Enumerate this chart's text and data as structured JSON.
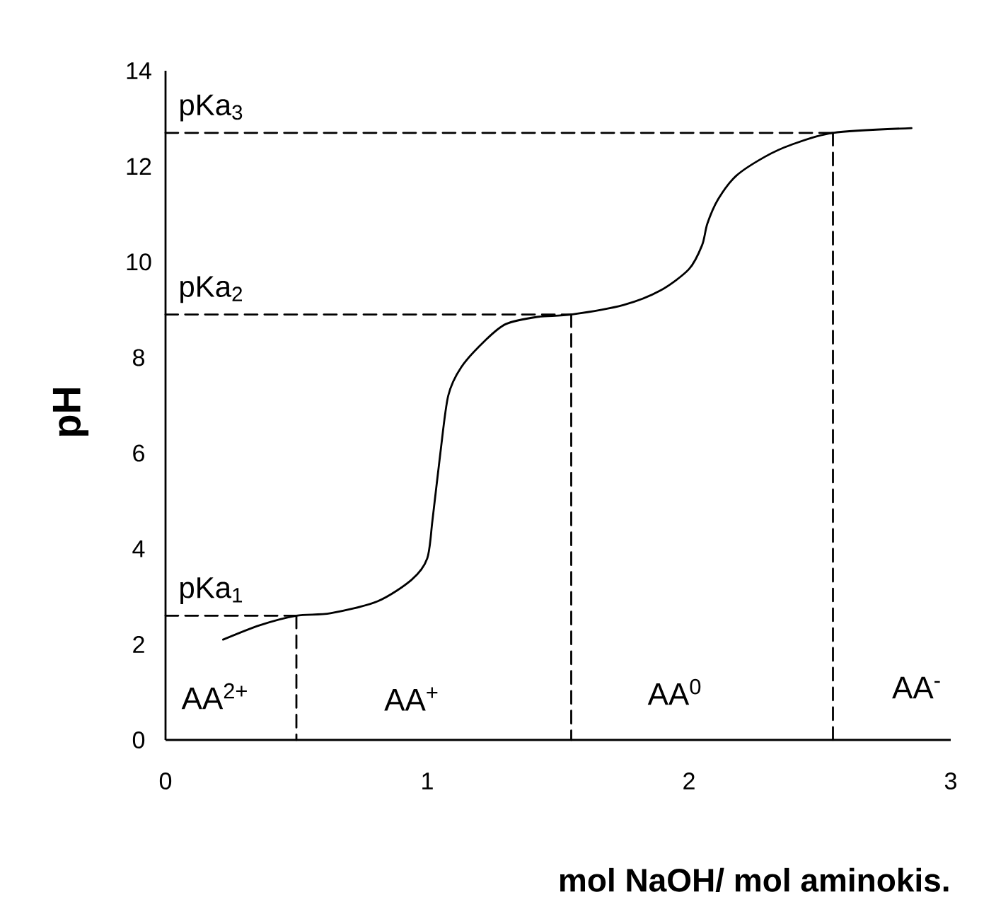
{
  "chart_data": {
    "type": "line",
    "xlabel": "mol NaOH/ mol aminokis.",
    "ylabel": "pH",
    "xlim": [
      0,
      3
    ],
    "ylim": [
      0,
      14
    ],
    "xticks": [
      0,
      1,
      2,
      3
    ],
    "yticks": [
      0,
      2,
      4,
      6,
      8,
      10,
      12,
      14
    ],
    "series": [
      {
        "color": "#000000",
        "line_style": "solid",
        "x": [
          0.22,
          0.36,
          0.5,
          0.63,
          0.81,
          0.94,
          1.0,
          1.02,
          1.05,
          1.08,
          1.13,
          1.22,
          1.3,
          1.42,
          1.55,
          1.75,
          1.89,
          2.0,
          2.05,
          2.07,
          2.11,
          2.18,
          2.29,
          2.39,
          2.55,
          2.85
        ],
        "values": [
          2.1,
          2.4,
          2.6,
          2.65,
          2.9,
          3.35,
          3.8,
          4.6,
          6.0,
          7.2,
          7.8,
          8.35,
          8.7,
          8.85,
          8.9,
          9.1,
          9.4,
          9.85,
          10.35,
          10.8,
          11.3,
          11.8,
          12.2,
          12.45,
          12.7,
          12.8
        ]
      },
      {
        "name": "pKa$_{1}$",
        "color": "#000000",
        "line_style": "dashed",
        "x": [
          0,
          0.5
        ],
        "values": [
          2.6,
          2.6
        ]
      },
      {
        "color": "#000000",
        "line_style": "dashed",
        "x": [
          0.5,
          0.5
        ],
        "values": [
          2.6,
          0
        ]
      },
      {
        "name": "pKa$_{2}$",
        "color": "#000000",
        "line_style": "dashed",
        "x": [
          0,
          1.55
        ],
        "values": [
          8.9,
          8.9
        ]
      },
      {
        "color": "#000000",
        "line_style": "dashed",
        "x": [
          1.55,
          1.55
        ],
        "values": [
          8.9,
          0
        ]
      },
      {
        "name": "pKa$_{3}$",
        "color": "#000000",
        "line_style": "dashed",
        "x": [
          0,
          2.55
        ],
        "values": [
          12.7,
          12.7
        ]
      },
      {
        "color": "#000000",
        "line_style": "dashed",
        "x": [
          2.55,
          2.55
        ],
        "values": [
          12.7,
          0
        ]
      }
    ],
    "annotations": [
      "AA$^{2+}$",
      "AA$^{+}$",
      "AA$^{0}$",
      "AA$^{-}$"
    ]
  }
}
